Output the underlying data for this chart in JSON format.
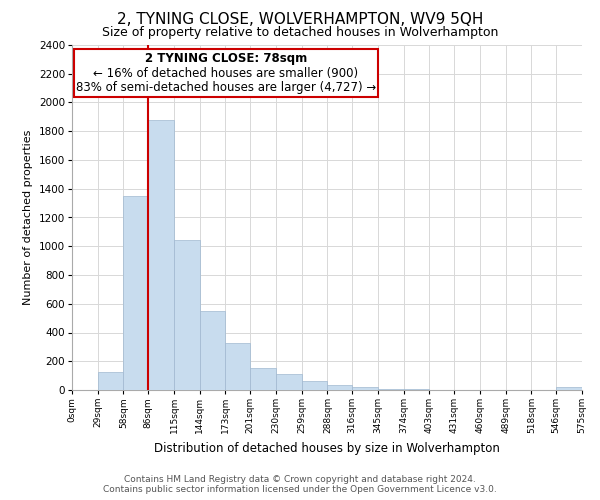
{
  "title": "2, TYNING CLOSE, WOLVERHAMPTON, WV9 5QH",
  "subtitle": "Size of property relative to detached houses in Wolverhampton",
  "xlabel": "Distribution of detached houses by size in Wolverhampton",
  "ylabel": "Number of detached properties",
  "bar_color": "#c8dcee",
  "bar_edge_color": "#a0b8d0",
  "grid_color": "#d8d8d8",
  "annotation_box_edge": "#cc0000",
  "property_line_color": "#cc0000",
  "footer_line1": "Contains HM Land Registry data © Crown copyright and database right 2024.",
  "footer_line2": "Contains public sector information licensed under the Open Government Licence v3.0.",
  "annotation_title": "2 TYNING CLOSE: 78sqm",
  "annotation_line2": "← 16% of detached houses are smaller (900)",
  "annotation_line3": "83% of semi-detached houses are larger (4,727) →",
  "property_size": 78,
  "bin_edges": [
    0,
    29,
    58,
    86,
    115,
    144,
    173,
    201,
    230,
    259,
    288,
    316,
    345,
    374,
    403,
    431,
    460,
    489,
    518,
    546,
    575
  ],
  "bin_labels": [
    "0sqm",
    "29sqm",
    "58sqm",
    "86sqm",
    "115sqm",
    "144sqm",
    "173sqm",
    "201sqm",
    "230sqm",
    "259sqm",
    "288sqm",
    "316sqm",
    "345sqm",
    "374sqm",
    "403sqm",
    "431sqm",
    "460sqm",
    "489sqm",
    "518sqm",
    "546sqm",
    "575sqm"
  ],
  "bar_heights": [
    0,
    125,
    1350,
    1880,
    1040,
    550,
    330,
    155,
    110,
    60,
    35,
    20,
    10,
    5,
    3,
    2,
    1,
    1,
    0,
    18
  ],
  "ylim": [
    0,
    2400
  ],
  "yticks": [
    0,
    200,
    400,
    600,
    800,
    1000,
    1200,
    1400,
    1600,
    1800,
    2000,
    2200,
    2400
  ],
  "title_fontsize": 11,
  "subtitle_fontsize": 9,
  "annotation_fontsize": 8.5,
  "footer_fontsize": 6.5
}
